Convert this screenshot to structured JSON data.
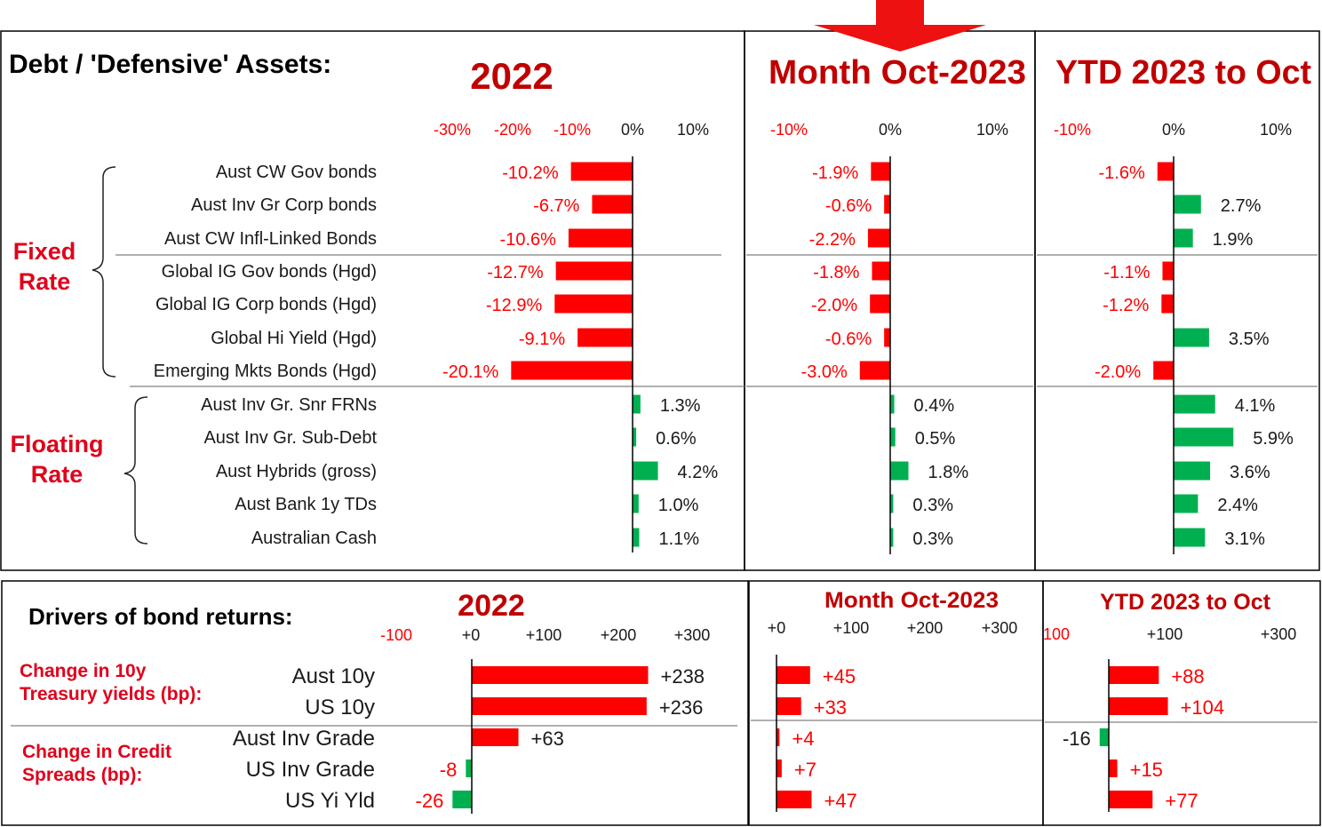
{
  "colors": {
    "negative": "#ff0000",
    "positive": "#00b050",
    "heading": "#c00000",
    "label_red": "#e0001b",
    "text": "#1a1a1a",
    "rule": "#808080"
  },
  "top": {
    "title": "Debt / 'Defensive' Assets:",
    "groups": [
      {
        "label_lines": [
          "Fixed",
          "Rate"
        ]
      },
      {
        "label_lines": [
          "Floating",
          "Rate"
        ]
      }
    ],
    "categories": [
      "Aust CW Gov bonds",
      "Aust Inv Gr Corp bonds",
      "Aust CW Infl-Linked Bonds",
      "Global IG Gov bonds (Hgd)",
      "Global IG Corp bonds (Hgd)",
      "Global Hi Yield (Hgd)",
      "Emerging Mkts Bonds (Hgd)",
      "Aust Inv Gr. Snr FRNs",
      "Aust Inv Gr. Sub-Debt",
      "Aust Hybrids (gross)",
      "Aust Bank 1y TDs",
      "Australian Cash"
    ]
  },
  "bottom": {
    "title": "Drivers of bond returns:",
    "groups": [
      {
        "label_lines": [
          "Change in 10y",
          "Treasury yields (bp):"
        ]
      },
      {
        "label_lines": [
          "Change in Credit",
          "Spreads (bp):"
        ]
      }
    ],
    "categories": [
      "Aust 10y",
      "US 10y",
      "Aust Inv Grade",
      "US Inv Grade",
      "US Yi Yld"
    ]
  },
  "chart_data": [
    {
      "type": "bar",
      "orientation": "horizontal",
      "unit": "%",
      "title": "2022",
      "ticks": [
        "-30%",
        "-20%",
        "-10%",
        "0%",
        "10%"
      ],
      "xlim": [
        -30,
        10
      ],
      "values": [
        -10.2,
        -6.7,
        -10.6,
        -12.7,
        -12.9,
        -9.1,
        -20.1,
        1.3,
        0.6,
        4.2,
        1.0,
        1.1
      ],
      "value_labels": [
        "-10.2%",
        "-6.7%",
        "-10.6%",
        "-12.7%",
        "-12.9%",
        "-9.1%",
        "-20.1%",
        "1.3%",
        "0.6%",
        "4.2%",
        "1.0%",
        "1.1%"
      ]
    },
    {
      "type": "bar",
      "orientation": "horizontal",
      "unit": "%",
      "title": "Month Oct-2023",
      "ticks": [
        "-10%",
        "0%",
        "10%"
      ],
      "xlim": [
        -10,
        10
      ],
      "values": [
        -1.9,
        -0.6,
        -2.2,
        -1.8,
        -2.0,
        -0.6,
        -3.0,
        0.4,
        0.5,
        1.8,
        0.3,
        0.3
      ],
      "value_labels": [
        "-1.9%",
        "-0.6%",
        "-2.2%",
        "-1.8%",
        "-2.0%",
        "-0.6%",
        "-3.0%",
        "0.4%",
        "0.5%",
        "1.8%",
        "0.3%",
        "0.3%"
      ]
    },
    {
      "type": "bar",
      "orientation": "horizontal",
      "unit": "%",
      "title": "YTD 2023 to Oct",
      "ticks": [
        "-10%",
        "0%",
        "10%"
      ],
      "xlim": [
        -10,
        10
      ],
      "values": [
        -1.6,
        2.7,
        1.9,
        -1.1,
        -1.2,
        3.5,
        -2.0,
        4.1,
        5.9,
        3.6,
        2.4,
        3.1
      ],
      "value_labels": [
        "-1.6%",
        "2.7%",
        "1.9%",
        "-1.1%",
        "-1.2%",
        "3.5%",
        "-2.0%",
        "4.1%",
        "5.9%",
        "3.6%",
        "2.4%",
        "3.1%"
      ]
    },
    {
      "type": "bar",
      "orientation": "horizontal",
      "unit": "bp",
      "title": "2022",
      "ticks": [
        "-100",
        "+0",
        "+100",
        "+200",
        "+300"
      ],
      "xlim": [
        -100,
        300
      ],
      "values": [
        238,
        236,
        63,
        -8,
        -26
      ],
      "value_labels": [
        "+238",
        "+236",
        "+63",
        "-8",
        "-26"
      ]
    },
    {
      "type": "bar",
      "orientation": "horizontal",
      "unit": "bp",
      "title": "Month Oct-2023",
      "ticks": [
        "+0",
        "+100",
        "+200",
        "+300"
      ],
      "xlim": [
        0,
        300
      ],
      "values": [
        45,
        33,
        4,
        7,
        47
      ],
      "value_labels": [
        "+45",
        "+33",
        "+4",
        "+7",
        "+47"
      ]
    },
    {
      "type": "bar",
      "orientation": "horizontal",
      "unit": "bp",
      "title": "YTD 2023 to Oct",
      "ticks": [
        "100",
        "+100",
        "+300"
      ],
      "xlim": [
        -100,
        300
      ],
      "values": [
        88,
        104,
        -16,
        15,
        77
      ],
      "value_labels": [
        "+88",
        "+104",
        "-16",
        "+15",
        "+77"
      ]
    }
  ]
}
